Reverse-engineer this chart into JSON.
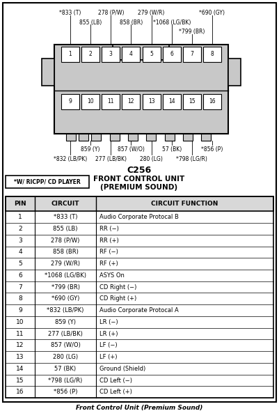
{
  "title": "C256",
  "subtitle1": "FRONT CONTROL UNIT",
  "subtitle2": "(PREMIUM SOUND)",
  "note_label": "*W/ RICPP/ CD PLAYER",
  "table_headers": [
    "PIN",
    "CIRCUIT",
    "CIRCUIT FUNCTION"
  ],
  "table_rows": [
    [
      "1",
      "*833 (T)",
      "Audio Corporate Protocal B"
    ],
    [
      "2",
      "855 (LB)",
      "RR (−)"
    ],
    [
      "3",
      "278 (P/W)",
      "RR (+)"
    ],
    [
      "4",
      "858 (BR)",
      "RF (−)"
    ],
    [
      "5",
      "279 (W/R)",
      "RF (+)"
    ],
    [
      "6",
      "*1068 (LG/BK)",
      "ASYS On"
    ],
    [
      "7",
      "*799 (BR)",
      "CD Right (−)"
    ],
    [
      "8",
      "*690 (GY)",
      "CD Right (+)"
    ],
    [
      "9",
      "*832 (LB/PK)",
      "Audio Corporate Protocal A"
    ],
    [
      "10",
      "859 (Y)",
      "LR (−)"
    ],
    [
      "11",
      "277 (LB/BK)",
      "LR (+)"
    ],
    [
      "12",
      "857 (W/O)",
      "LF (−)"
    ],
    [
      "13",
      "280 (LG)",
      "LF (+)"
    ],
    [
      "14",
      "57 (BK)",
      "Ground (Shield)"
    ],
    [
      "15",
      "*798 (LG/R)",
      "CD Left (−)"
    ],
    [
      "16",
      "*856 (P)",
      "CD Left (+)"
    ]
  ],
  "footer": "Front Control Unit (Premium Sound)",
  "bg_color": "#ffffff",
  "border_color": "#000000",
  "connector_fill": "#c8c8c8"
}
